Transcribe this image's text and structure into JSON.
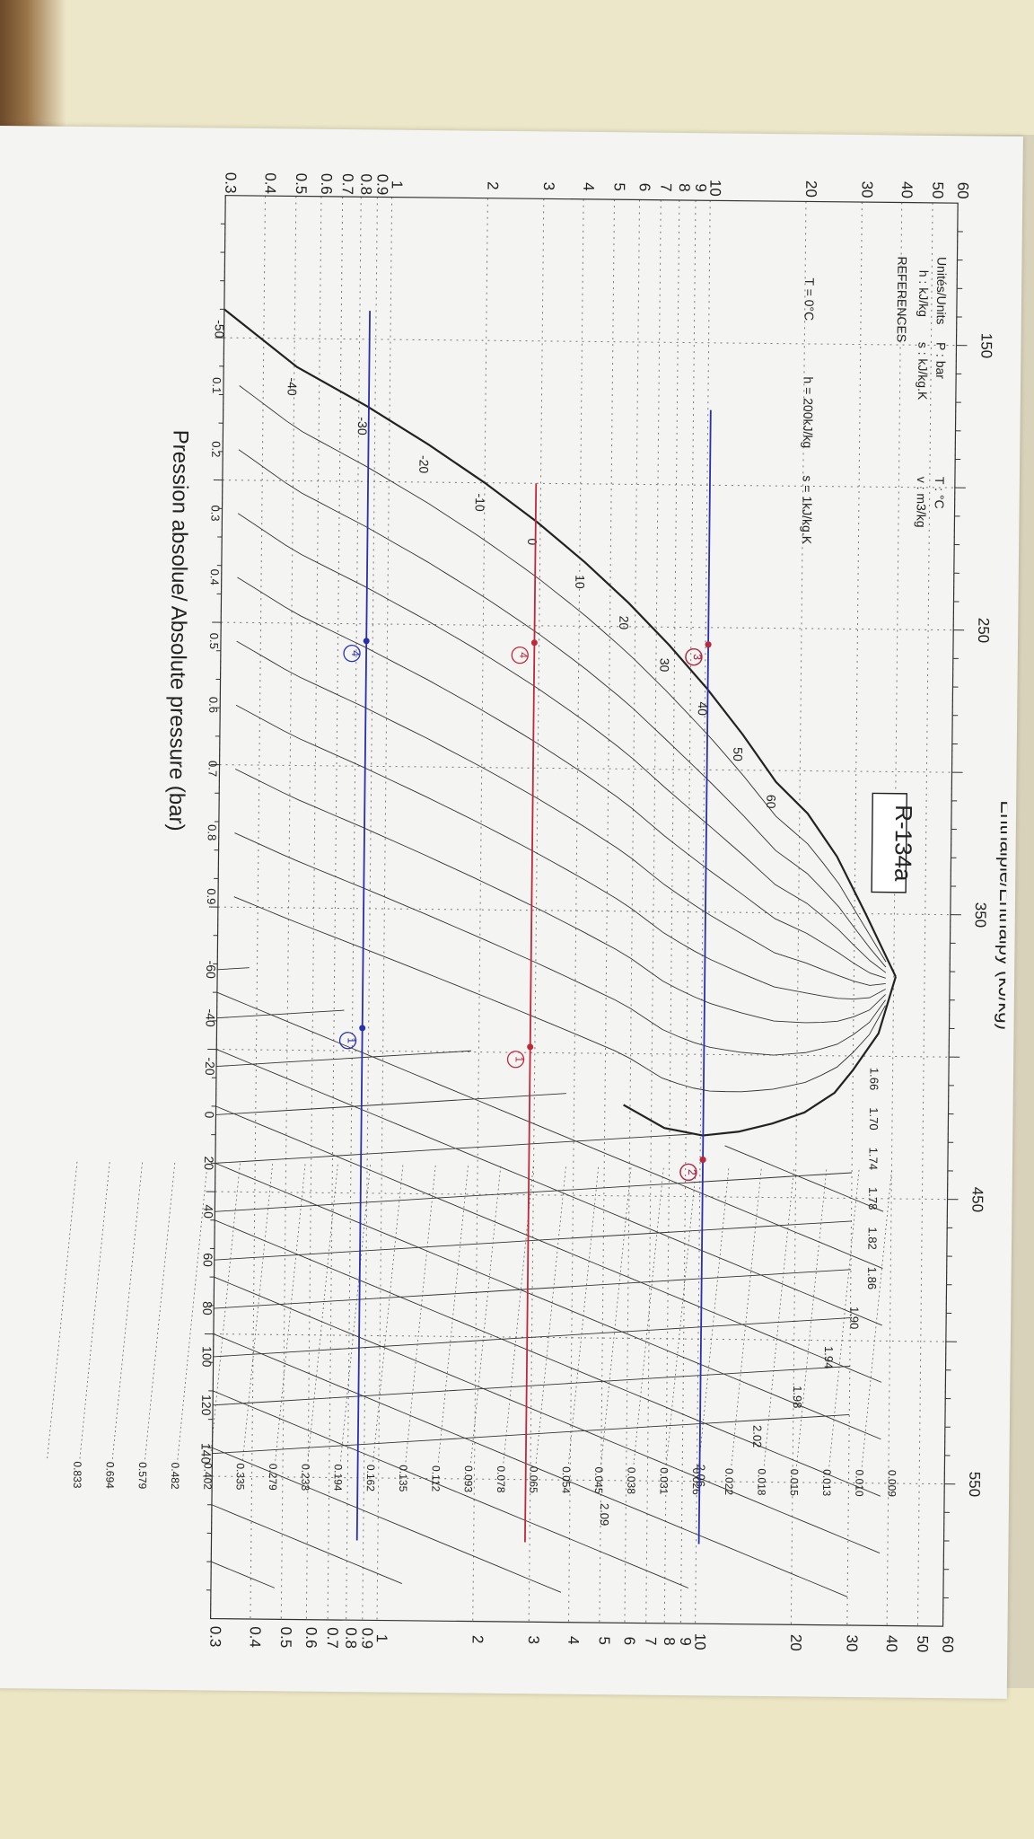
{
  "chart_data": {
    "type": "line",
    "title": "R-134a",
    "xlabel": "Enthalpie/Enthalpy (kJ/kg)",
    "ylabel": "Pression absolue/ Absolute pressure (bar)",
    "xlim": [
      100,
      600
    ],
    "ylim": [
      0.3,
      60
    ],
    "yscale": "log",
    "x_ticks": [
      "150",
      "250",
      "350",
      "450",
      "550"
    ],
    "y_ticks_left": [
      "60",
      "50",
      "40",
      "30",
      "20",
      "10",
      "9",
      "8",
      "7",
      "6",
      "5",
      "4",
      "3",
      "2",
      "1",
      "0.9",
      "0.8",
      "0.7",
      "0.6",
      "0.5",
      "0.4",
      "0.3"
    ],
    "y_ticks_right": [
      "60",
      "50",
      "40",
      "30",
      "20",
      "10",
      "9",
      "8",
      "7",
      "6",
      "5",
      "4",
      "3",
      "2",
      "1",
      "0.9",
      "0.8",
      "0.7",
      "0.6",
      "0.5",
      "0.4",
      "0.3"
    ],
    "info_box": {
      "units_header": "Unités/Units",
      "units": [
        "P : bar",
        "T : °C",
        "h : kJ/kg",
        "s : kJ/kg.K",
        "v : m3/kg"
      ],
      "ref_header": "REFERENCES",
      "refs": [
        "T = 0°C",
        "h = 200kJ/kg",
        "s = 1kJ/kg.K"
      ]
    },
    "saturation_liquid": {
      "h": [
        140,
        160,
        173.6,
        186.8,
        200,
        213.6,
        227.5,
        241.7,
        256.4,
        271.6,
        287.5,
        304,
        315,
        330,
        350,
        372
      ],
      "p": [
        0.3,
        0.51,
        0.85,
        1.33,
        2.0,
        2.93,
        4.15,
        5.72,
        7.7,
        10.17,
        13.18,
        16.82,
        21.2,
        26.3,
        32.5,
        40.6
      ]
    },
    "saturation_vapor": {
      "h": [
        372,
        392,
        405,
        413,
        420,
        424,
        427,
        428.5,
        426,
        418
      ],
      "p": [
        40.6,
        36,
        30,
        26.3,
        21.2,
        16.82,
        13.18,
        10.17,
        7.7,
        5.72
      ]
    },
    "isotherm_labels_liquid": [
      "-50",
      "-40",
      "-30",
      "-20",
      "-10",
      "0",
      "10",
      "20",
      "30",
      "40",
      "50",
      "60"
    ],
    "isotherm_labels_bottom": [
      "-60",
      "-40",
      "-20",
      "0",
      "20",
      "40",
      "60",
      "80",
      "100",
      "120",
      "140"
    ],
    "quality_labels": [
      "0.1",
      "0.2",
      "0.3",
      "0.4",
      "0.5",
      "0.6",
      "0.7",
      "0.8",
      "0.9"
    ],
    "isentrope_labels": [
      "1.66",
      "1.70",
      "1.74",
      "1.78",
      "1.82",
      "1.86",
      "1.90",
      "1.94",
      "1.98",
      "2.02",
      "2.06",
      "2.09"
    ],
    "isochore_labels": [
      "0.009",
      "0.010",
      "0.013",
      "0.015",
      "0.018",
      "0.022",
      "0.026",
      "0.031",
      "0.038",
      "0.045",
      "0.054",
      "0.065",
      "0.078",
      "0.093",
      "0.112",
      "0.135",
      "0.162",
      "0.194",
      "0.233",
      "0.279",
      "0.335",
      "0.402",
      "0.482",
      "0.579",
      "0.694",
      "0.833"
    ],
    "annotation_lines": [
      {
        "name": "high-pressure line",
        "color": "#2a2fb0",
        "p": 10.2,
        "h": [
          173.6,
          572
        ]
      },
      {
        "name": "intermediate pressure line",
        "color": "#c0283a",
        "p": 2.9,
        "h": [
          200,
          572
        ]
      },
      {
        "name": "low-pressure line",
        "color": "#2a2fb0",
        "p": 0.86,
        "h": [
          140,
          572
        ]
      }
    ],
    "cycle_points": [
      {
        "label": "1",
        "color": "#2a2fb0",
        "h": 392,
        "p": 0.86
      },
      {
        "label": "2",
        "color": "#2a2fb0",
        "h": 437,
        "p": 10.2
      },
      {
        "label": "3",
        "color": "#2a2fb0",
        "h": 256,
        "p": 10.2
      },
      {
        "label": "4",
        "color": "#2a2fb0",
        "h": 256,
        "p": 0.86
      },
      {
        "label": "1",
        "color": "#c0283a",
        "h": 398,
        "p": 2.9
      },
      {
        "label": "2",
        "color": "#c0283a",
        "h": 437,
        "p": 10.2
      },
      {
        "label": "3",
        "color": "#c0283a",
        "h": 256,
        "p": 10.2
      },
      {
        "label": "4",
        "color": "#c0283a",
        "h": 256,
        "p": 2.9
      }
    ]
  }
}
